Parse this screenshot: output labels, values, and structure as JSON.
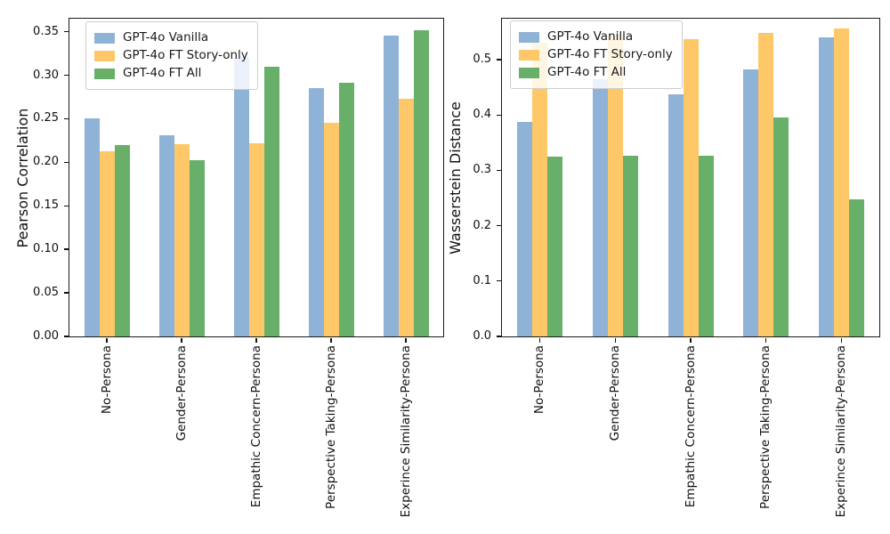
{
  "chart_data": [
    {
      "type": "bar",
      "title": "",
      "ylabel": "Pearson Correlation",
      "xlabel": "",
      "categories": [
        "No-Persona",
        "Gender-Persona",
        "Empathic Concern-Persona",
        "Perspective Taking-Persona",
        "Experince Similarity-Persona"
      ],
      "series": [
        {
          "name": "GPT-4o Vanilla",
          "color": "#8FB3D6",
          "values": [
            0.25,
            0.231,
            0.32,
            0.285,
            0.346
          ]
        },
        {
          "name": "GPT-4o FT Story-only",
          "color": "#FEC767",
          "values": [
            0.213,
            0.221,
            0.222,
            0.245,
            0.273
          ]
        },
        {
          "name": "GPT-4o FT All",
          "color": "#68B069",
          "values": [
            0.22,
            0.202,
            0.31,
            0.291,
            0.352
          ]
        }
      ],
      "ylim": [
        0,
        0.365
      ],
      "yticks": {
        "values": [
          0,
          0.05,
          0.1,
          0.15,
          0.2,
          0.25,
          0.3,
          0.35
        ],
        "labels": [
          "0.00",
          "0.05",
          "0.10",
          "0.15",
          "0.20",
          "0.25",
          "0.30",
          "0.35"
        ]
      },
      "legend_position": "upper left",
      "grid": false
    },
    {
      "type": "bar",
      "title": "",
      "ylabel": "Wasserstein Distance",
      "xlabel": "",
      "categories": [
        "No-Persona",
        "Gender-Persona",
        "Empathic Concern-Persona",
        "Perspective Taking-Persona",
        "Experince Similarity-Persona"
      ],
      "series": [
        {
          "name": "GPT-4o Vanilla",
          "color": "#8FB3D6",
          "values": [
            0.388,
            0.464,
            0.437,
            0.482,
            0.54
          ]
        },
        {
          "name": "GPT-4o FT Story-only",
          "color": "#FEC767",
          "values": [
            0.53,
            0.545,
            0.537,
            0.549,
            0.556
          ]
        },
        {
          "name": "GPT-4o FT All",
          "color": "#68B069",
          "values": [
            0.325,
            0.326,
            0.327,
            0.395,
            0.248
          ]
        }
      ],
      "ylim": [
        0,
        0.574
      ],
      "yticks": {
        "values": [
          0,
          0.1,
          0.2,
          0.3,
          0.4,
          0.5
        ],
        "labels": [
          "0.0",
          "0.1",
          "0.2",
          "0.3",
          "0.4",
          "0.5"
        ]
      },
      "legend_position": "upper left",
      "grid": false
    }
  ]
}
